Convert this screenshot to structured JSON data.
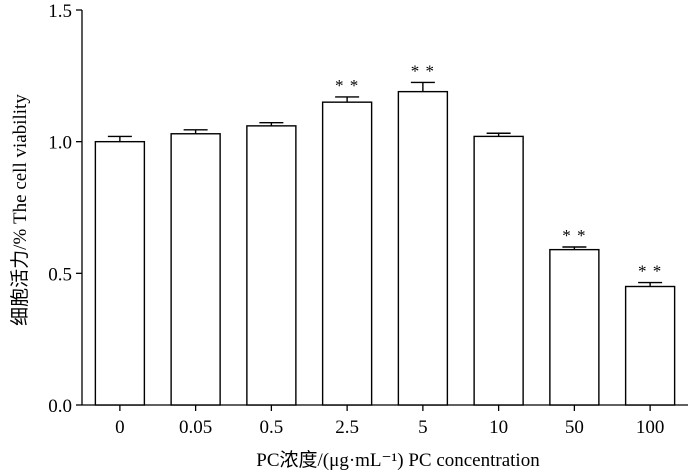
{
  "chart_data": {
    "type": "bar",
    "title": "",
    "xlabel": "PC浓度/(μg·mL⁻¹)   PC concentration",
    "ylabel": "细胞活力/%   The cell viability",
    "ylim": [
      0,
      1.5
    ],
    "yticks": [
      0.0,
      0.5,
      1.0,
      1.5
    ],
    "ytick_labels": [
      "0.0",
      "0.5",
      "1.0",
      "1.5"
    ],
    "categories": [
      "0",
      "0.05",
      "0.5",
      "2.5",
      "5",
      "10",
      "50",
      "100"
    ],
    "values": [
      1.0,
      1.03,
      1.06,
      1.15,
      1.19,
      1.02,
      0.59,
      0.45
    ],
    "errors": [
      0.02,
      0.015,
      0.012,
      0.02,
      0.035,
      0.012,
      0.01,
      0.015
    ],
    "annotations": [
      "",
      "",
      "",
      "**",
      "**",
      "",
      "**",
      "**"
    ],
    "grid": false,
    "bar_color": "#ffffff",
    "edge_color": "#000000"
  }
}
